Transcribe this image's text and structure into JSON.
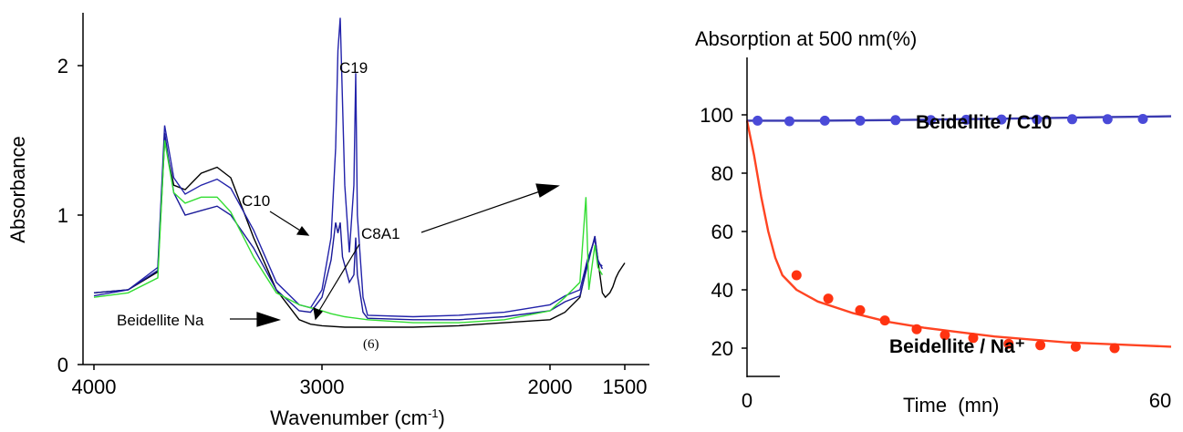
{
  "chart_data": [
    {
      "type": "line",
      "title": "",
      "xlabel": "Wavenumber (cm-1)",
      "xlabel_main": "Wavenumber (cm",
      "xlabel_sup": "-1",
      "xlabel_tail": ")",
      "ylabel": "Absorbance",
      "xlim": [
        4000,
        1500
      ],
      "x_axis_note": "axis broken between 2000 and 1500",
      "ylim": [
        0,
        2.35
      ],
      "x_ticks": [
        "4000",
        "3000",
        "2000",
        "1500"
      ],
      "y_ticks": [
        "0",
        "1",
        "2"
      ],
      "series": [
        {
          "color": "#000000",
          "x": [
            4000,
            3850,
            3720,
            3690,
            3650,
            3600,
            3530,
            3460,
            3400,
            3300,
            3200,
            3100,
            3050,
            3000,
            2900,
            2800,
            2600,
            2400,
            2200,
            2000,
            1900,
            1800,
            1750,
            1700,
            1680,
            1650,
            1630,
            1600,
            1580,
            1560,
            1540,
            1520,
            1500
          ],
          "y": [
            0.48,
            0.5,
            0.62,
            1.5,
            1.2,
            1.17,
            1.28,
            1.32,
            1.25,
            0.85,
            0.5,
            0.3,
            0.27,
            0.26,
            0.25,
            0.25,
            0.25,
            0.26,
            0.28,
            0.3,
            0.35,
            0.45,
            0.68,
            0.85,
            0.7,
            0.48,
            0.45,
            0.48,
            0.52,
            0.58,
            0.62,
            0.65,
            0.68
          ]
        },
        {
          "color": "#2222aa",
          "x": [
            4000,
            3850,
            3720,
            3690,
            3650,
            3600,
            3530,
            3460,
            3400,
            3300,
            3200,
            3100,
            3050,
            3000,
            2960,
            2940,
            2930,
            2920,
            2900,
            2880,
            2860,
            2852,
            2845,
            2820,
            2800,
            2600,
            2400,
            2200,
            2000,
            1900,
            1800,
            1750,
            1700,
            1680,
            1650
          ],
          "y": [
            0.46,
            0.5,
            0.65,
            1.6,
            1.25,
            1.14,
            1.2,
            1.24,
            1.18,
            0.9,
            0.55,
            0.4,
            0.38,
            0.5,
            0.85,
            1.45,
            2.1,
            2.32,
            1.2,
            0.75,
            1.2,
            1.95,
            1.0,
            0.45,
            0.33,
            0.32,
            0.33,
            0.35,
            0.4,
            0.46,
            0.5,
            0.7,
            0.84,
            0.68,
            0.66
          ]
        },
        {
          "color": "#1a1a99",
          "x": [
            4000,
            3850,
            3720,
            3690,
            3650,
            3600,
            3530,
            3460,
            3400,
            3300,
            3200,
            3100,
            3050,
            3000,
            2960,
            2940,
            2930,
            2920,
            2910,
            2880,
            2860,
            2852,
            2845,
            2820,
            2800,
            2600,
            2400,
            2200,
            2000,
            1900,
            1800,
            1750,
            1700,
            1680,
            1650
          ],
          "y": [
            0.48,
            0.5,
            0.63,
            1.55,
            1.15,
            1.0,
            1.03,
            1.06,
            1.0,
            0.78,
            0.5,
            0.36,
            0.35,
            0.45,
            0.7,
            0.95,
            0.88,
            0.95,
            0.72,
            0.55,
            0.6,
            0.85,
            0.6,
            0.35,
            0.31,
            0.3,
            0.3,
            0.32,
            0.36,
            0.42,
            0.46,
            0.66,
            0.86,
            0.7,
            0.64
          ]
        },
        {
          "color": "#33dd33",
          "x": [
            4000,
            3850,
            3720,
            3690,
            3650,
            3600,
            3530,
            3460,
            3400,
            3300,
            3200,
            3100,
            3050,
            3000,
            2960,
            2900,
            2800,
            2600,
            2400,
            2200,
            2000,
            1900,
            1800,
            1760,
            1740,
            1700,
            1680,
            1650
          ],
          "y": [
            0.45,
            0.48,
            0.58,
            1.5,
            1.15,
            1.08,
            1.12,
            1.12,
            1.02,
            0.72,
            0.48,
            0.4,
            0.38,
            0.36,
            0.34,
            0.32,
            0.3,
            0.28,
            0.28,
            0.3,
            0.36,
            0.45,
            0.55,
            1.12,
            0.5,
            0.8,
            0.65,
            0.6
          ]
        }
      ],
      "annotations": [
        "C19",
        "C10",
        "C8A1",
        "Beidellite Na",
        "(6)"
      ]
    },
    {
      "type": "line",
      "title": "Absorption at 500 nm(%)",
      "xlabel": "Time  (mn)",
      "ylabel": "",
      "xlim": [
        0,
        60
      ],
      "ylim": [
        10,
        105
      ],
      "x_ticks": [
        "0",
        "60"
      ],
      "y_ticks": [
        "20",
        "40",
        "60",
        "80",
        "100"
      ],
      "series": [
        {
          "name": "Beidellite / C10",
          "color": "#3a3ab0",
          "marker_color": "#4a4ad8",
          "curve_x": [
            0,
            10,
            20,
            30,
            40,
            50,
            60
          ],
          "curve_y": [
            98,
            98,
            98.2,
            98.5,
            98.8,
            99.2,
            99.5
          ],
          "x": [
            1.5,
            6,
            11,
            16,
            21,
            26,
            31,
            36,
            41,
            46,
            51,
            56
          ],
          "y": [
            98,
            97.8,
            98,
            98,
            98.2,
            98.2,
            98.3,
            98.4,
            98.4,
            98.5,
            98.5,
            98.6
          ]
        },
        {
          "name": "Beidellite / Na⁺",
          "color": "#ff4422",
          "marker_color": "#ff3311",
          "curve_x": [
            0,
            1,
            2,
            3,
            4,
            5,
            7,
            10,
            15,
            20,
            25,
            30,
            35,
            40,
            45,
            50,
            55,
            60
          ],
          "curve_y": [
            98,
            86,
            72,
            60,
            51,
            45,
            40,
            36,
            32,
            29,
            27,
            25.5,
            24,
            23,
            22,
            21.5,
            21,
            20.5
          ],
          "x": [
            7,
            11.5,
            16,
            19.5,
            24,
            28,
            32,
            37,
            41.5,
            46.5,
            52
          ],
          "y": [
            45,
            37,
            33,
            29.5,
            26.5,
            24.5,
            23.5,
            21.5,
            21,
            20.5,
            20
          ]
        }
      ]
    }
  ]
}
